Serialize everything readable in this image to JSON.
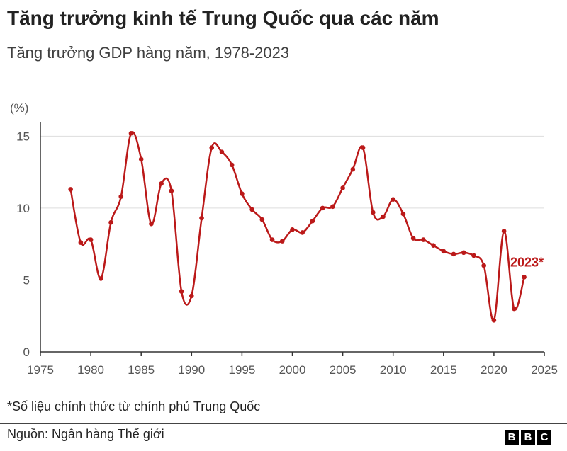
{
  "title": "Tăng trưởng kinh tế Trung Quốc qua các năm",
  "subtitle": "Tăng trưởng GDP hàng năm, 1978-2023",
  "footnote": "*Số liệu chính thức từ chính phủ Trung Quốc",
  "source": "Nguồn: Ngân hàng Thế giới",
  "logo": [
    "B",
    "B",
    "C"
  ],
  "colors": {
    "line": "#bb1919",
    "axis": "#333333",
    "grid": "#dddddd"
  },
  "chart_data": {
    "type": "line",
    "unit_label": "(%)",
    "xlim": [
      1975,
      2025
    ],
    "ylim": [
      0,
      16
    ],
    "xticks": [
      1975,
      1980,
      1985,
      1990,
      1995,
      2000,
      2005,
      2010,
      2015,
      2020,
      2025
    ],
    "yticks": [
      0,
      5,
      10,
      15
    ],
    "grid": true,
    "annotation": {
      "text": "2023*",
      "x": 2023,
      "y": 5.2
    },
    "series": [
      {
        "x": [
          1978,
          1979,
          1980,
          1981,
          1982,
          1983,
          1984,
          1985,
          1986,
          1987,
          1988,
          1989,
          1990,
          1991,
          1992,
          1993,
          1994,
          1995,
          1996,
          1997,
          1998,
          1999,
          2000,
          2001,
          2002,
          2003,
          2004,
          2005,
          2006,
          2007,
          2008,
          2009,
          2010,
          2011,
          2012,
          2013,
          2014,
          2015,
          2016,
          2017,
          2018,
          2019,
          2020,
          2021,
          2022,
          2023
        ],
        "values": [
          11.3,
          7.6,
          7.8,
          5.1,
          9.0,
          10.8,
          15.2,
          13.4,
          8.9,
          11.7,
          11.2,
          4.2,
          3.9,
          9.3,
          14.2,
          13.9,
          13.0,
          11.0,
          9.9,
          9.2,
          7.8,
          7.7,
          8.5,
          8.3,
          9.1,
          10.0,
          10.1,
          11.4,
          12.7,
          14.2,
          9.7,
          9.4,
          10.6,
          9.6,
          7.9,
          7.8,
          7.4,
          7.0,
          6.8,
          6.9,
          6.7,
          6.0,
          2.2,
          8.4,
          3.0,
          5.2
        ]
      }
    ]
  }
}
